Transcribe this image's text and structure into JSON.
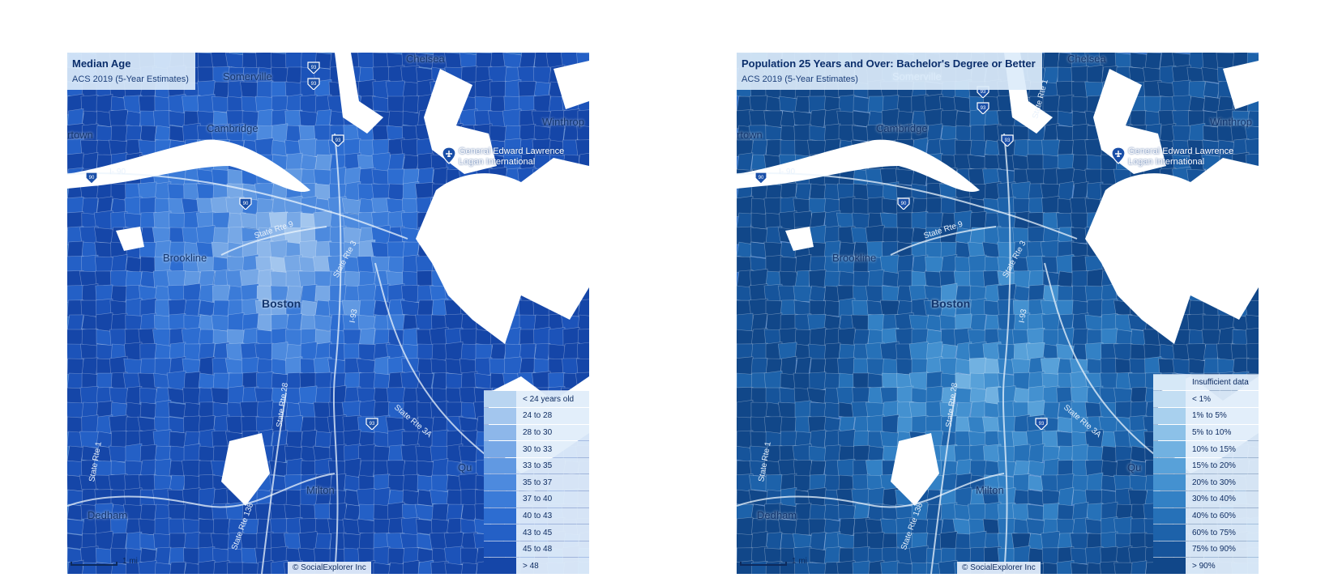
{
  "maps": [
    {
      "id": "median-age",
      "title": "Median Age",
      "subtitle": "ACS 2019 (5-Year Estimates)",
      "legend": [
        {
          "label": "< 24 years old",
          "color": "#b9d5f1"
        },
        {
          "label": "24 to 28",
          "color": "#a3c6ee"
        },
        {
          "label": "28 to 30",
          "color": "#8db7ea"
        },
        {
          "label": "30 to 33",
          "color": "#77a8e6"
        },
        {
          "label": "33 to 35",
          "color": "#6199e2"
        },
        {
          "label": "35 to 37",
          "color": "#4d8ade"
        },
        {
          "label": "37 to 40",
          "color": "#3b7bd8"
        },
        {
          "label": "40 to 43",
          "color": "#2d6dd1"
        },
        {
          "label": "43 to 45",
          "color": "#2460c6"
        },
        {
          "label": "45 to 48",
          "color": "#1c53b9"
        },
        {
          "label": "> 48",
          "color": "#1546a8"
        }
      ]
    },
    {
      "id": "bachelors-degree",
      "title": "Population 25 Years and Over: Bachelor's Degree or Better",
      "subtitle": "ACS 2019 (5-Year Estimates)",
      "legend": [
        {
          "label": "Insufficient data",
          "color": "#d6e8f7"
        },
        {
          "label": "< 1%",
          "color": "#c3def3"
        },
        {
          "label": "1% to 5%",
          "color": "#a8d0ee"
        },
        {
          "label": "5% to 10%",
          "color": "#8cc1e8"
        },
        {
          "label": "10% to 15%",
          "color": "#71b1e1"
        },
        {
          "label": "15% to 20%",
          "color": "#58a1d9"
        },
        {
          "label": "20% to 30%",
          "color": "#4491d0"
        },
        {
          "label": "30% to 40%",
          "color": "#3381c5"
        },
        {
          "label": "40% to 60%",
          "color": "#2671b8"
        },
        {
          "label": "60% to 75%",
          "color": "#1d62aa"
        },
        {
          "label": "75% to 90%",
          "color": "#16549b"
        },
        {
          "label": "> 90%",
          "color": "#114789"
        }
      ]
    }
  ],
  "places": {
    "somerville": "Somerville",
    "chelsea": "Chelsea",
    "cambridge": "Cambridge",
    "winthrop": "Winthrop",
    "town": "rtown",
    "brookline": "Brookline",
    "boston": "Boston",
    "milton": "Milton",
    "dedham": "Dedham",
    "quincy": "Qu"
  },
  "airport": {
    "line1": "General Edward Lawrence",
    "line2": "Logan International"
  },
  "roads": {
    "i90": "I- 90",
    "state_rte_9": "State Rte 9",
    "state_rte_3": "State Rte 3",
    "state_rte_28": "State Rte 28",
    "state_rte_138": "State Rte 138",
    "state_rte_1": "State Rte 1",
    "i93": "I-93",
    "state_rte_3a": "State Rte 3A"
  },
  "shields": {
    "s93": "93",
    "s90": "90",
    "s1": "1"
  },
  "scale": {
    "label": "1 mi"
  },
  "credit": "© SocialExplorer Inc"
}
